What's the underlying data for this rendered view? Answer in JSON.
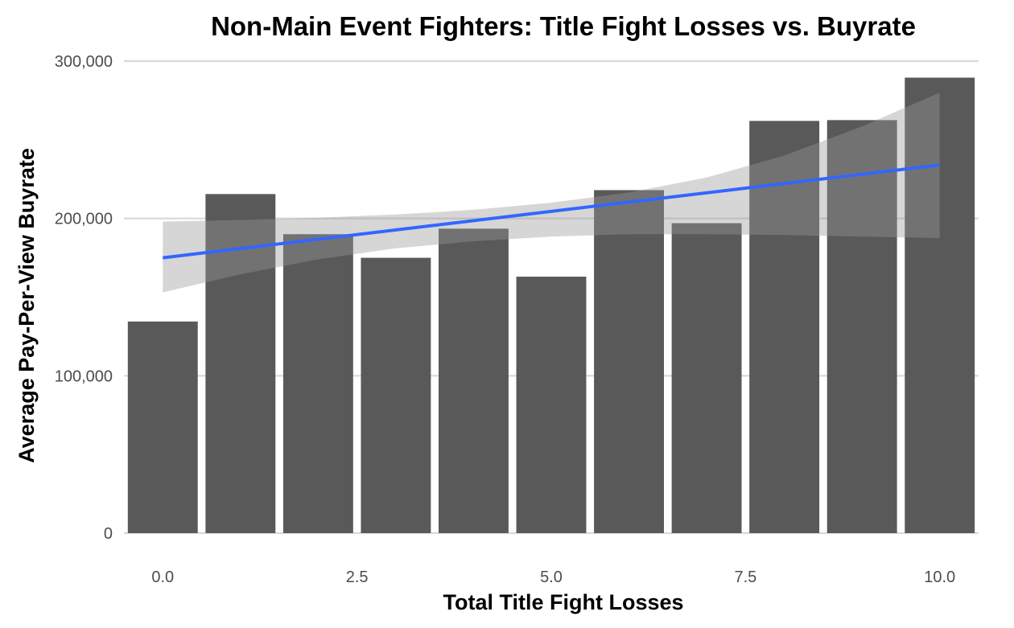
{
  "chart_data": {
    "type": "bar",
    "title": "Non-Main Event Fighters: Title Fight Losses vs. Buyrate",
    "xlabel": "Total Title Fight Losses",
    "ylabel": "Average Pay-Per-View Buyrate",
    "x": [
      0,
      1,
      2,
      3,
      4,
      5,
      6,
      7,
      8,
      9,
      10
    ],
    "values": [
      134500,
      215500,
      190000,
      175000,
      193500,
      163000,
      218000,
      197000,
      262000,
      262500,
      289500
    ],
    "xlim": [
      -0.5,
      10.5
    ],
    "ylim": [
      0,
      300000
    ],
    "x_ticks": [
      {
        "value": 0,
        "label": "0.0"
      },
      {
        "value": 2.5,
        "label": "2.5"
      },
      {
        "value": 5,
        "label": "5.0"
      },
      {
        "value": 7.5,
        "label": "7.5"
      },
      {
        "value": 10,
        "label": "10.0"
      }
    ],
    "y_ticks": [
      {
        "value": 0,
        "label": "0"
      },
      {
        "value": 100000,
        "label": "100,000"
      },
      {
        "value": 200000,
        "label": "200,000"
      },
      {
        "value": 300000,
        "label": "300,000"
      }
    ],
    "trend_line": {
      "method": "linear",
      "x": [
        0,
        10
      ],
      "y": [
        175000,
        234000
      ],
      "confidence_band": {
        "x": [
          0,
          1,
          2,
          3,
          4,
          5,
          6,
          7,
          8,
          9,
          10
        ],
        "upper": [
          198000,
          199000,
          200500,
          202500,
          205500,
          210000,
          216500,
          226000,
          240000,
          258500,
          280000
        ],
        "lower": [
          153000,
          164500,
          174000,
          181000,
          185500,
          188500,
          190000,
          190000,
          189500,
          188500,
          187500
        ]
      }
    },
    "grid": true,
    "legend": "none",
    "colors": {
      "bar": "#595959",
      "trend_line": "#3366ff",
      "band": "#999999",
      "grid": "#d9d9d9"
    }
  }
}
